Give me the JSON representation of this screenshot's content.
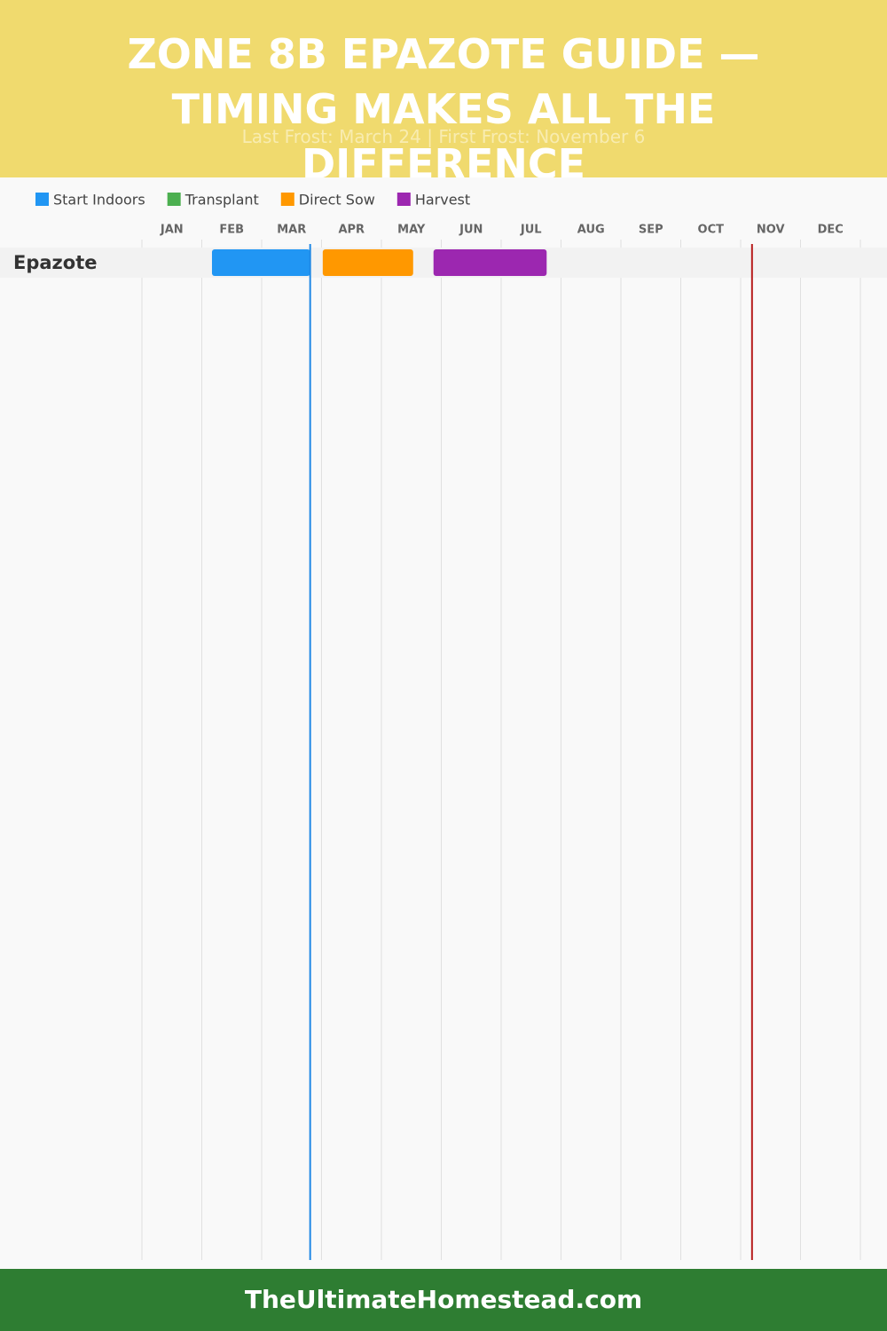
{
  "chart_data": {
    "type": "gantt",
    "title": "ZONE 8B EPAZOTE GUIDE — TIMING MAKES ALL THE DIFFERENCE",
    "subtitle": "Last Frost: March 24 | First Frost: November 6",
    "months": [
      "JAN",
      "FEB",
      "MAR",
      "APR",
      "MAY",
      "JUN",
      "JUL",
      "AUG",
      "SEP",
      "OCT",
      "NOV",
      "DEC"
    ],
    "xlim": [
      0,
      12
    ],
    "categories": [
      "Epazote"
    ],
    "series": [
      {
        "name": "Start Indoors",
        "color": "#2196f3",
        "values": [
          [
            1.17,
            2.81
          ]
        ]
      },
      {
        "name": "Transplant",
        "color": "#4caf50",
        "values": [
          null
        ]
      },
      {
        "name": "Direct Sow",
        "color": "#ff9800",
        "values": [
          [
            3.02,
            4.53
          ]
        ]
      },
      {
        "name": "Harvest",
        "color": "#9c27b0",
        "values": [
          [
            4.87,
            6.76
          ]
        ]
      }
    ],
    "markers": [
      {
        "value": 2.81,
        "color": "#1e88e5"
      },
      {
        "value": 10.19,
        "color": "#b71c1c"
      }
    ]
  },
  "footer": "TheUltimateHomestead.com"
}
